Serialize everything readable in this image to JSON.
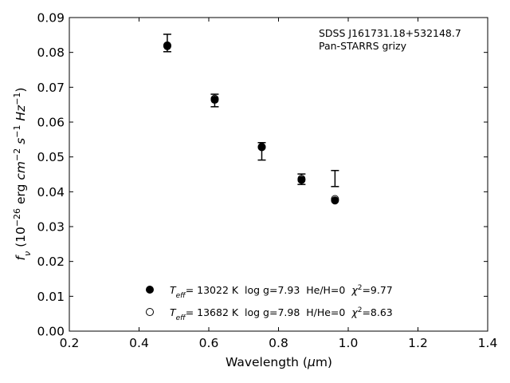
{
  "chart_data": {
    "type": "scatter",
    "title": "",
    "xlabel": "Wavelength (μm)",
    "ylabel": "f_ν (10^-26 erg cm^-2 s^-1 Hz^-1)",
    "xlim": [
      0.2,
      1.4
    ],
    "ylim": [
      0.0,
      0.09
    ],
    "x_ticks": [
      "0.2",
      "0.4",
      "0.6",
      "0.8",
      "1.0",
      "1.2",
      "1.4"
    ],
    "y_ticks": [
      "0.00",
      "0.01",
      "0.02",
      "0.03",
      "0.04",
      "0.05",
      "0.06",
      "0.07",
      "0.08",
      "0.09"
    ],
    "grid": false,
    "annotation": [
      "SDSS J161731.18+532148.7",
      "Pan-STARRS grizy"
    ],
    "observed": {
      "style": "errorbar",
      "x": [
        0.481,
        0.617,
        0.752,
        0.866,
        0.962
      ],
      "y": [
        0.0827,
        0.0662,
        0.0516,
        0.0436,
        0.0438
      ],
      "yerr": [
        0.0025,
        0.0018,
        0.0025,
        0.0015,
        0.0023
      ]
    },
    "series": [
      {
        "marker": "filled-circle",
        "x": [
          0.481,
          0.617,
          0.752,
          0.866,
          0.962
        ],
        "y": [
          0.0818,
          0.0664,
          0.0529,
          0.0434,
          0.0375
        ]
      },
      {
        "marker": "open-circle",
        "x": [
          0.481,
          0.617,
          0.752,
          0.866,
          0.962
        ],
        "y": [
          0.082,
          0.0667,
          0.0528,
          0.0437,
          0.0379
        ]
      }
    ],
    "legend": {
      "placement": "lower-center",
      "entries": [
        {
          "teff_label": "T",
          "teff_sub": "eff",
          "text": "= 13022 K  log g=7.93  He/H=0  ",
          "chi_sym": "χ",
          "chi_sup": "2",
          "chi_val": "=9.77"
        },
        {
          "teff_label": "T",
          "teff_sub": "eff",
          "text": "= 13682 K  log g=7.98  H/He=0  ",
          "chi_sym": "χ",
          "chi_sup": "2",
          "chi_val": "=8.63"
        }
      ]
    }
  }
}
